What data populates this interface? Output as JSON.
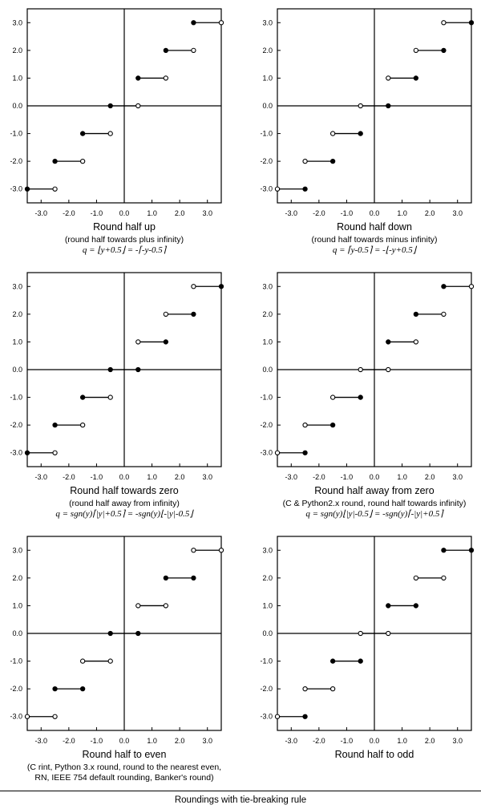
{
  "figure_caption": "Roundings with tie-breaking rule",
  "chart_data": [
    {
      "type": "line",
      "title": "Round half up",
      "subtitle_lines": [
        "(round half towards plus infinity)"
      ],
      "formula": "q = ⌊y+0.5⌋ = -⌈-y-0.5⌉",
      "xlim": [
        -3.5,
        3.5
      ],
      "ylim": [
        -3.5,
        3.5
      ],
      "x_ticks": [
        "-3.0",
        "-2.0",
        "-1.0",
        "0.0",
        "1.0",
        "2.0",
        "3.0"
      ],
      "y_ticks": [
        "3.0",
        "2.0",
        "1.0",
        "0.0",
        "-1.0",
        "-2.0",
        "-3.0"
      ],
      "steps": [
        {
          "q": -3,
          "x_from": -3.5,
          "x_to": -2.5,
          "from_closed": true,
          "to_closed": false
        },
        {
          "q": -2,
          "x_from": -2.5,
          "x_to": -1.5,
          "from_closed": true,
          "to_closed": false
        },
        {
          "q": -1,
          "x_from": -1.5,
          "x_to": -0.5,
          "from_closed": true,
          "to_closed": false
        },
        {
          "q": 0,
          "x_from": -0.5,
          "x_to": 0.5,
          "from_closed": true,
          "to_closed": false
        },
        {
          "q": 1,
          "x_from": 0.5,
          "x_to": 1.5,
          "from_closed": true,
          "to_closed": false
        },
        {
          "q": 2,
          "x_from": 1.5,
          "x_to": 2.5,
          "from_closed": true,
          "to_closed": false
        },
        {
          "q": 3,
          "x_from": 2.5,
          "x_to": 3.5,
          "from_closed": true,
          "to_closed": false
        }
      ]
    },
    {
      "type": "line",
      "title": "Round half down",
      "subtitle_lines": [
        "(round half towards minus infinity)"
      ],
      "formula": "q = ⌈y-0.5⌉ = -⌊-y+0.5⌋",
      "xlim": [
        -3.5,
        3.5
      ],
      "ylim": [
        -3.5,
        3.5
      ],
      "x_ticks": [
        "-3.0",
        "-2.0",
        "-1.0",
        "0.0",
        "1.0",
        "2.0",
        "3.0"
      ],
      "y_ticks": [
        "3.0",
        "2.0",
        "1.0",
        "0.0",
        "-1.0",
        "-2.0",
        "-3.0"
      ],
      "steps": [
        {
          "q": -3,
          "x_from": -3.5,
          "x_to": -2.5,
          "from_closed": false,
          "to_closed": true
        },
        {
          "q": -2,
          "x_from": -2.5,
          "x_to": -1.5,
          "from_closed": false,
          "to_closed": true
        },
        {
          "q": -1,
          "x_from": -1.5,
          "x_to": -0.5,
          "from_closed": false,
          "to_closed": true
        },
        {
          "q": 0,
          "x_from": -0.5,
          "x_to": 0.5,
          "from_closed": false,
          "to_closed": true
        },
        {
          "q": 1,
          "x_from": 0.5,
          "x_to": 1.5,
          "from_closed": false,
          "to_closed": true
        },
        {
          "q": 2,
          "x_from": 1.5,
          "x_to": 2.5,
          "from_closed": false,
          "to_closed": true
        },
        {
          "q": 3,
          "x_from": 2.5,
          "x_to": 3.5,
          "from_closed": false,
          "to_closed": true
        }
      ]
    },
    {
      "type": "line",
      "title": "Round half towards zero",
      "subtitle_lines": [
        "(round half away from infinity)"
      ],
      "formula": "q = sgn(y)⌈|y|+0.5⌉ = -sgn(y)⌊-|y|-0.5⌋",
      "xlim": [
        -3.5,
        3.5
      ],
      "ylim": [
        -3.5,
        3.5
      ],
      "x_ticks": [
        "-3.0",
        "-2.0",
        "-1.0",
        "0.0",
        "1.0",
        "2.0",
        "3.0"
      ],
      "y_ticks": [
        "3.0",
        "2.0",
        "1.0",
        "0.0",
        "-1.0",
        "-2.0",
        "-3.0"
      ],
      "steps": [
        {
          "q": -3,
          "x_from": -3.5,
          "x_to": -2.5,
          "from_closed": true,
          "to_closed": false
        },
        {
          "q": -2,
          "x_from": -2.5,
          "x_to": -1.5,
          "from_closed": true,
          "to_closed": false
        },
        {
          "q": -1,
          "x_from": -1.5,
          "x_to": -0.5,
          "from_closed": true,
          "to_closed": false
        },
        {
          "q": 0,
          "x_from": -0.5,
          "x_to": 0.5,
          "from_closed": true,
          "to_closed": true
        },
        {
          "q": 1,
          "x_from": 0.5,
          "x_to": 1.5,
          "from_closed": false,
          "to_closed": true
        },
        {
          "q": 2,
          "x_from": 1.5,
          "x_to": 2.5,
          "from_closed": false,
          "to_closed": true
        },
        {
          "q": 3,
          "x_from": 2.5,
          "x_to": 3.5,
          "from_closed": false,
          "to_closed": true
        }
      ]
    },
    {
      "type": "line",
      "title": "Round half away from zero",
      "subtitle_lines": [
        "(C & Python2.x round, round half towards infinity)"
      ],
      "formula": "q = sgn(y)⌊|y|-0.5⌋ = -sgn(y)⌈-|y|+0.5⌉",
      "xlim": [
        -3.5,
        3.5
      ],
      "ylim": [
        -3.5,
        3.5
      ],
      "x_ticks": [
        "-3.0",
        "-2.0",
        "-1.0",
        "0.0",
        "1.0",
        "2.0",
        "3.0"
      ],
      "y_ticks": [
        "3.0",
        "2.0",
        "1.0",
        "0.0",
        "-1.0",
        "-2.0",
        "-3.0"
      ],
      "steps": [
        {
          "q": -3,
          "x_from": -3.5,
          "x_to": -2.5,
          "from_closed": false,
          "to_closed": true
        },
        {
          "q": -2,
          "x_from": -2.5,
          "x_to": -1.5,
          "from_closed": false,
          "to_closed": true
        },
        {
          "q": -1,
          "x_from": -1.5,
          "x_to": -0.5,
          "from_closed": false,
          "to_closed": true
        },
        {
          "q": 0,
          "x_from": -0.5,
          "x_to": 0.5,
          "from_closed": false,
          "to_closed": false
        },
        {
          "q": 1,
          "x_from": 0.5,
          "x_to": 1.5,
          "from_closed": true,
          "to_closed": false
        },
        {
          "q": 2,
          "x_from": 1.5,
          "x_to": 2.5,
          "from_closed": true,
          "to_closed": false
        },
        {
          "q": 3,
          "x_from": 2.5,
          "x_to": 3.5,
          "from_closed": true,
          "to_closed": false
        }
      ]
    },
    {
      "type": "line",
      "title": "Round half to even",
      "subtitle_lines": [
        "(C rint, Python 3.x round, round to the nearest even,",
        "RN, IEEE 754 default rounding, Banker's round)"
      ],
      "formula": "",
      "xlim": [
        -3.5,
        3.5
      ],
      "ylim": [
        -3.5,
        3.5
      ],
      "x_ticks": [
        "-3.0",
        "-2.0",
        "-1.0",
        "0.0",
        "1.0",
        "2.0",
        "3.0"
      ],
      "y_ticks": [
        "3.0",
        "2.0",
        "1.0",
        "0.0",
        "-1.0",
        "-2.0",
        "-3.0"
      ],
      "steps": [
        {
          "q": -3,
          "x_from": -3.5,
          "x_to": -2.5,
          "from_closed": false,
          "to_closed": false
        },
        {
          "q": -2,
          "x_from": -2.5,
          "x_to": -1.5,
          "from_closed": true,
          "to_closed": true
        },
        {
          "q": -1,
          "x_from": -1.5,
          "x_to": -0.5,
          "from_closed": false,
          "to_closed": false
        },
        {
          "q": 0,
          "x_from": -0.5,
          "x_to": 0.5,
          "from_closed": true,
          "to_closed": true
        },
        {
          "q": 1,
          "x_from": 0.5,
          "x_to": 1.5,
          "from_closed": false,
          "to_closed": false
        },
        {
          "q": 2,
          "x_from": 1.5,
          "x_to": 2.5,
          "from_closed": true,
          "to_closed": true
        },
        {
          "q": 3,
          "x_from": 2.5,
          "x_to": 3.5,
          "from_closed": false,
          "to_closed": false
        }
      ]
    },
    {
      "type": "line",
      "title": "Round half to odd",
      "subtitle_lines": [],
      "formula": "",
      "xlim": [
        -3.5,
        3.5
      ],
      "ylim": [
        -3.5,
        3.5
      ],
      "x_ticks": [
        "-3.0",
        "-2.0",
        "-1.0",
        "0.0",
        "1.0",
        "2.0",
        "3.0"
      ],
      "y_ticks": [
        "3.0",
        "2.0",
        "1.0",
        "0.0",
        "-1.0",
        "-2.0",
        "-3.0"
      ],
      "steps": [
        {
          "q": -3,
          "x_from": -3.5,
          "x_to": -2.5,
          "from_closed": false,
          "to_closed": true
        },
        {
          "q": -2,
          "x_from": -2.5,
          "x_to": -1.5,
          "from_closed": false,
          "to_closed": false
        },
        {
          "q": -1,
          "x_from": -1.5,
          "x_to": -0.5,
          "from_closed": true,
          "to_closed": true
        },
        {
          "q": 0,
          "x_from": -0.5,
          "x_to": 0.5,
          "from_closed": false,
          "to_closed": false
        },
        {
          "q": 1,
          "x_from": 0.5,
          "x_to": 1.5,
          "from_closed": true,
          "to_closed": true
        },
        {
          "q": 2,
          "x_from": 1.5,
          "x_to": 2.5,
          "from_closed": false,
          "to_closed": false
        },
        {
          "q": 3,
          "x_from": 2.5,
          "x_to": 3.5,
          "from_closed": true,
          "to_closed": true
        }
      ]
    }
  ]
}
